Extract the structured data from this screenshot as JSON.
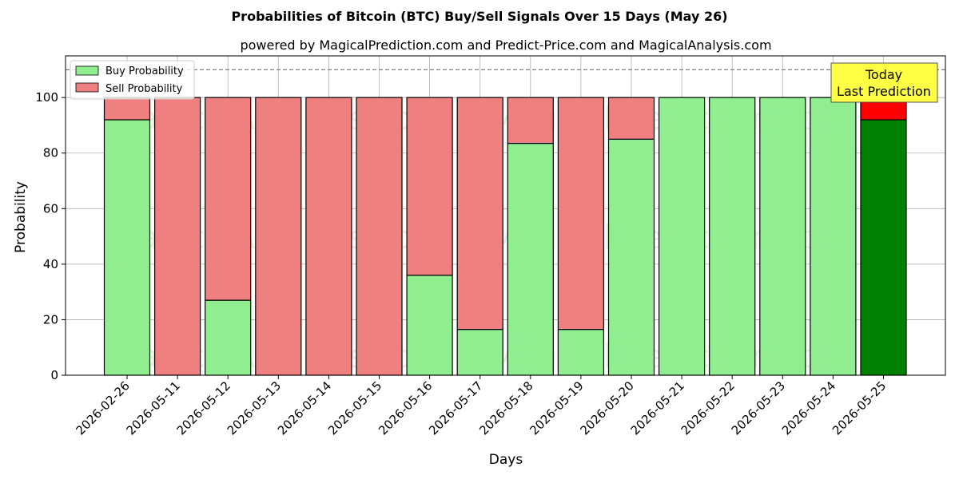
{
  "chart_data": {
    "type": "bar",
    "stacked": true,
    "title": "Probabilities of Bitcoin (BTC) Buy/Sell Signals Over 15 Days (May 26)",
    "subtitle": "powered by MagicalPrediction.com and Predict-Price.com and MagicalAnalysis.com",
    "xlabel": "Days",
    "ylabel": "Probability",
    "ylim": [
      0,
      115
    ],
    "yticks": [
      0,
      20,
      40,
      60,
      80,
      100
    ],
    "reference_line": 110,
    "grid": true,
    "legend_position": "top-left",
    "categories": [
      "2026-02-26",
      "2026-05-11",
      "2026-05-12",
      "2026-05-13",
      "2026-05-14",
      "2026-05-15",
      "2026-05-16",
      "2026-05-17",
      "2026-05-18",
      "2026-05-19",
      "2026-05-20",
      "2026-05-21",
      "2026-05-22",
      "2026-05-23",
      "2026-05-24",
      "2026-05-25"
    ],
    "series": [
      {
        "name": "Buy Probability",
        "color": "#90ee90",
        "values": [
          92,
          0,
          27,
          0,
          0,
          0,
          36,
          16.5,
          83.5,
          16.5,
          85,
          100,
          100,
          100,
          100,
          92
        ]
      },
      {
        "name": "Sell Probability",
        "color": "#f08080",
        "values": [
          8,
          100,
          73,
          100,
          100,
          100,
          64,
          83.5,
          16.5,
          83.5,
          15,
          0,
          0,
          0,
          0,
          8
        ]
      }
    ],
    "highlight": {
      "index": 15,
      "buy_color": "#008000",
      "sell_color": "#ff0000"
    },
    "annotation": {
      "line1": "Today",
      "line2": "Last Prediction",
      "box_color": "#ffff44"
    },
    "watermarks": [
      "MagicalAnalysis.com",
      "MagicalPrediction.com"
    ]
  }
}
